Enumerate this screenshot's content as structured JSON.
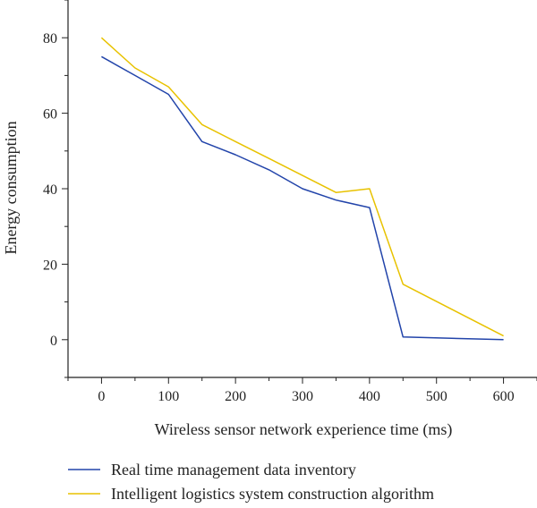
{
  "chart_data": {
    "type": "line",
    "title": "",
    "xlabel": "Wireless sensor network experience time (ms)",
    "ylabel": "Energy consumption",
    "xlim": [
      -50,
      650
    ],
    "ylim": [
      -10,
      90
    ],
    "x_ticks": [
      0,
      100,
      200,
      300,
      400,
      500,
      600
    ],
    "y_ticks": [
      0,
      20,
      40,
      60,
      80
    ],
    "grid": false,
    "legend_position": "bottom",
    "series": [
      {
        "name": "Real time management data inventory",
        "color": "#2244aa",
        "x": [
          0,
          50,
          100,
          150,
          200,
          250,
          300,
          350,
          400,
          450,
          600
        ],
        "y": [
          75,
          70,
          65,
          52.5,
          49,
          45,
          40,
          37,
          35,
          0.7,
          0
        ]
      },
      {
        "name": "Intelligent logistics system construction algorithm",
        "color": "#e8c200",
        "x": [
          0,
          50,
          100,
          150,
          200,
          250,
          300,
          350,
          400,
          450,
          600
        ],
        "y": [
          80,
          72,
          67,
          57,
          52.5,
          48,
          43.5,
          39,
          40,
          14.7,
          1
        ]
      }
    ]
  }
}
